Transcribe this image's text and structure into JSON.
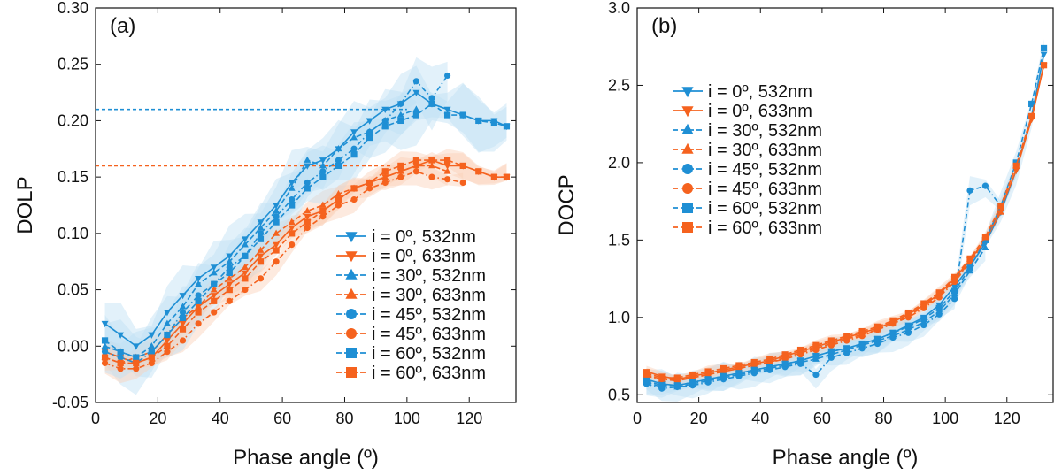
{
  "colors": {
    "blue": "#1f8fd4",
    "orange": "#f5621e",
    "band_blue": "#bfe0f3",
    "band_orange": "#fbd0b9"
  },
  "chart_data": [
    {
      "type": "line",
      "panel_label": "(a)",
      "xlabel": "Phase angle (º)",
      "ylabel": "DOLP",
      "xlim": [
        0,
        135
      ],
      "ylim": [
        -0.05,
        0.3
      ],
      "xticks": [
        "0",
        "20",
        "40",
        "60",
        "80",
        "100",
        "120"
      ],
      "xtick_values": [
        0,
        20,
        40,
        60,
        80,
        100,
        120
      ],
      "yticks": [
        "-0.05",
        "0.00",
        "0.05",
        "0.10",
        "0.15",
        "0.20",
        "0.25",
        "0.30"
      ],
      "ytick_values": [
        -0.05,
        0.0,
        0.05,
        0.1,
        0.15,
        0.2,
        0.25,
        0.3
      ],
      "reference_lines": [
        {
          "y": 0.21,
          "x_end": 100,
          "color": "blue"
        },
        {
          "y": 0.16,
          "x_end": 95,
          "color": "orange"
        }
      ],
      "legend_position": "bottom-right",
      "series": [
        {
          "name": "i =  0º, 532nm",
          "color": "blue",
          "marker": "triangle-down",
          "dash": "solid",
          "x": [
            3,
            8,
            13,
            18,
            23,
            28,
            33,
            38,
            43,
            48,
            53,
            58,
            63,
            68,
            73,
            78,
            83,
            88,
            93,
            98,
            103,
            108,
            113,
            118,
            123,
            128,
            132
          ],
          "y": [
            0.02,
            0.01,
            0.0,
            0.01,
            0.03,
            0.045,
            0.06,
            0.07,
            0.08,
            0.095,
            0.11,
            0.125,
            0.145,
            0.16,
            0.165,
            0.175,
            0.19,
            0.2,
            0.21,
            0.215,
            0.225,
            0.215,
            0.21,
            0.205,
            0.2,
            0.2,
            0.195
          ]
        },
        {
          "name": "i =  0º, 633nm",
          "color": "orange",
          "marker": "triangle-down",
          "dash": "solid",
          "x": [
            3,
            8,
            13,
            18,
            23,
            28,
            33,
            38,
            43,
            48,
            53,
            58,
            63,
            68,
            73,
            78,
            83,
            88,
            93,
            98,
            103,
            108,
            113,
            118,
            123,
            128,
            132
          ],
          "y": [
            -0.005,
            -0.01,
            -0.015,
            -0.01,
            0.005,
            0.02,
            0.035,
            0.045,
            0.055,
            0.065,
            0.08,
            0.09,
            0.105,
            0.115,
            0.12,
            0.13,
            0.14,
            0.145,
            0.15,
            0.155,
            0.16,
            0.165,
            0.16,
            0.16,
            0.155,
            0.15,
            0.15
          ]
        },
        {
          "name": "i = 30º, 532nm",
          "color": "blue",
          "marker": "triangle-up",
          "dash": "dash",
          "x": [
            3,
            8,
            13,
            18,
            23,
            28,
            33,
            38,
            43,
            48,
            53,
            58,
            63,
            68,
            73,
            78,
            83,
            88,
            93,
            98,
            103
          ],
          "y": [
            0.0,
            -0.005,
            -0.01,
            0.0,
            0.02,
            0.035,
            0.055,
            0.065,
            0.075,
            0.09,
            0.105,
            0.12,
            0.14,
            0.165,
            0.16,
            0.175,
            0.185,
            0.19,
            0.2,
            0.205,
            0.21
          ]
        },
        {
          "name": "i = 30º, 633nm",
          "color": "orange",
          "marker": "triangle-up",
          "dash": "dash",
          "x": [
            3,
            8,
            13,
            18,
            23,
            28,
            33,
            38,
            43,
            48,
            53,
            58,
            63,
            68,
            73,
            78,
            83,
            88,
            93,
            98,
            103,
            108,
            113
          ],
          "y": [
            -0.01,
            -0.015,
            -0.01,
            -0.005,
            0.01,
            0.025,
            0.035,
            0.05,
            0.06,
            0.07,
            0.085,
            0.1,
            0.11,
            0.12,
            0.125,
            0.135,
            0.14,
            0.145,
            0.15,
            0.155,
            0.16,
            0.16,
            0.155
          ]
        },
        {
          "name": "i = 45º, 532nm",
          "color": "blue",
          "marker": "circle",
          "dash": "dashdot",
          "x": [
            3,
            8,
            13,
            18,
            23,
            28,
            33,
            38,
            43,
            48,
            53,
            58,
            63,
            68,
            73,
            78,
            83,
            88,
            93,
            98,
            103,
            108,
            113
          ],
          "y": [
            -0.005,
            -0.01,
            -0.015,
            -0.005,
            0.01,
            0.03,
            0.045,
            0.055,
            0.07,
            0.08,
            0.1,
            0.115,
            0.13,
            0.145,
            0.155,
            0.165,
            0.175,
            0.19,
            0.2,
            0.215,
            0.235,
            0.22,
            0.24
          ]
        },
        {
          "name": "i = 45º, 633nm",
          "color": "orange",
          "marker": "circle",
          "dash": "dashdot",
          "x": [
            3,
            8,
            13,
            18,
            23,
            28,
            33,
            38,
            43,
            48,
            53,
            58,
            63,
            68,
            73,
            78,
            83,
            88,
            93,
            98,
            103,
            108,
            113,
            118
          ],
          "y": [
            -0.015,
            -0.02,
            -0.02,
            -0.015,
            -0.005,
            0.005,
            0.02,
            0.03,
            0.04,
            0.05,
            0.06,
            0.075,
            0.09,
            0.105,
            0.115,
            0.125,
            0.13,
            0.14,
            0.145,
            0.15,
            0.155,
            0.15,
            0.148,
            0.145
          ]
        },
        {
          "name": "i = 60º, 532nm",
          "color": "blue",
          "marker": "square",
          "dash": "dash",
          "x": [
            3,
            8,
            13,
            18,
            23,
            28,
            33,
            38,
            43,
            48,
            53,
            58,
            63,
            68,
            73,
            78,
            83,
            88,
            93,
            98,
            103,
            108,
            113,
            118,
            123,
            128,
            132
          ],
          "y": [
            0.005,
            -0.005,
            -0.01,
            -0.005,
            0.01,
            0.025,
            0.04,
            0.055,
            0.065,
            0.08,
            0.095,
            0.11,
            0.125,
            0.14,
            0.15,
            0.16,
            0.17,
            0.185,
            0.195,
            0.2,
            0.205,
            0.215,
            0.205,
            0.205,
            0.2,
            0.198,
            0.195
          ]
        },
        {
          "name": "i = 60º, 633nm",
          "color": "orange",
          "marker": "square",
          "dash": "dash",
          "x": [
            3,
            8,
            13,
            18,
            23,
            28,
            33,
            38,
            43,
            48,
            53,
            58,
            63,
            68,
            73,
            78,
            83,
            88,
            93,
            98,
            103,
            108,
            113,
            118,
            123,
            128,
            132
          ],
          "y": [
            -0.01,
            -0.015,
            -0.015,
            -0.01,
            0.0,
            0.015,
            0.03,
            0.04,
            0.05,
            0.06,
            0.075,
            0.085,
            0.1,
            0.11,
            0.12,
            0.13,
            0.14,
            0.145,
            0.155,
            0.16,
            0.165,
            0.165,
            0.165,
            0.16,
            0.155,
            0.15,
            0.15
          ]
        }
      ]
    },
    {
      "type": "line",
      "panel_label": "(b)",
      "xlabel": "Phase angle (º)",
      "ylabel": "DOCP",
      "xlim": [
        0,
        135
      ],
      "ylim": [
        0.45,
        3.0
      ],
      "xticks": [
        "0",
        "20",
        "40",
        "60",
        "80",
        "100",
        "120"
      ],
      "xtick_values": [
        0,
        20,
        40,
        60,
        80,
        100,
        120
      ],
      "yticks": [
        "0.5",
        "1.0",
        "1.5",
        "2.0",
        "2.5",
        "3.0"
      ],
      "ytick_values": [
        0.5,
        1.0,
        1.5,
        2.0,
        2.5,
        3.0
      ],
      "legend_position": "top-left",
      "series": [
        {
          "name": "i =  0º, 532nm",
          "color": "blue",
          "marker": "triangle-down",
          "dash": "solid",
          "x": [
            3,
            8,
            13,
            18,
            23,
            28,
            33,
            38,
            43,
            48,
            53,
            58,
            63,
            68,
            73,
            78,
            83,
            88,
            93,
            98,
            103,
            108,
            113,
            118,
            123,
            128,
            132
          ],
          "y": [
            0.6,
            0.57,
            0.56,
            0.58,
            0.6,
            0.62,
            0.64,
            0.66,
            0.68,
            0.7,
            0.72,
            0.75,
            0.78,
            0.8,
            0.83,
            0.86,
            0.9,
            0.95,
            1.0,
            1.08,
            1.2,
            1.33,
            1.48,
            1.68,
            1.95,
            2.3,
            2.7
          ]
        },
        {
          "name": "i =  0º, 633nm",
          "color": "orange",
          "marker": "triangle-down",
          "dash": "solid",
          "x": [
            3,
            8,
            13,
            18,
            23,
            28,
            33,
            38,
            43,
            48,
            53,
            58,
            63,
            68,
            73,
            78,
            83,
            88,
            93,
            98,
            103,
            108,
            113,
            118,
            123,
            128,
            132
          ],
          "y": [
            0.65,
            0.62,
            0.6,
            0.62,
            0.64,
            0.66,
            0.68,
            0.7,
            0.72,
            0.75,
            0.78,
            0.81,
            0.84,
            0.87,
            0.9,
            0.93,
            0.97,
            1.02,
            1.08,
            1.15,
            1.25,
            1.37,
            1.5,
            1.7,
            1.95,
            2.28,
            2.63
          ]
        },
        {
          "name": "i = 30º, 532nm",
          "color": "blue",
          "marker": "triangle-up",
          "dash": "dash",
          "x": [
            3,
            8,
            13,
            18,
            23,
            28,
            33,
            38,
            43,
            48,
            53,
            58,
            63,
            68,
            73,
            78,
            83,
            88,
            93,
            98,
            103,
            108,
            113
          ],
          "y": [
            0.58,
            0.55,
            0.55,
            0.57,
            0.59,
            0.61,
            0.63,
            0.65,
            0.67,
            0.69,
            0.71,
            0.73,
            0.76,
            0.79,
            0.82,
            0.85,
            0.88,
            0.92,
            0.97,
            1.04,
            1.15,
            1.3,
            1.45
          ]
        },
        {
          "name": "i = 30º, 633nm",
          "color": "orange",
          "marker": "triangle-up",
          "dash": "dash",
          "x": [
            3,
            8,
            13,
            18,
            23,
            28,
            33,
            38,
            43,
            48,
            53,
            58,
            63,
            68,
            73,
            78,
            83,
            88,
            93,
            98,
            103,
            108,
            113,
            118
          ],
          "y": [
            0.63,
            0.6,
            0.6,
            0.61,
            0.63,
            0.65,
            0.67,
            0.69,
            0.71,
            0.74,
            0.77,
            0.8,
            0.83,
            0.86,
            0.89,
            0.92,
            0.96,
            1.01,
            1.07,
            1.14,
            1.24,
            1.36,
            1.5,
            1.68
          ]
        },
        {
          "name": "i = 45º, 532nm",
          "color": "blue",
          "marker": "circle",
          "dash": "dashdot",
          "x": [
            3,
            8,
            13,
            18,
            23,
            28,
            33,
            38,
            43,
            48,
            53,
            58,
            63,
            68,
            73,
            78,
            83,
            88,
            93,
            98,
            103,
            108,
            113,
            118
          ],
          "y": [
            0.57,
            0.54,
            0.55,
            0.56,
            0.58,
            0.6,
            0.62,
            0.64,
            0.66,
            0.68,
            0.7,
            0.63,
            0.74,
            0.77,
            0.8,
            0.83,
            0.87,
            0.9,
            0.95,
            1.02,
            1.12,
            1.82,
            1.85,
            1.72
          ]
        },
        {
          "name": "i = 45º, 633nm",
          "color": "orange",
          "marker": "circle",
          "dash": "dashdot",
          "x": [
            3,
            8,
            13,
            18,
            23,
            28,
            33,
            38,
            43,
            48,
            53,
            58,
            63,
            68,
            73,
            78,
            83,
            88,
            93,
            98,
            103,
            108,
            113,
            118
          ],
          "y": [
            0.62,
            0.6,
            0.59,
            0.61,
            0.63,
            0.65,
            0.67,
            0.69,
            0.71,
            0.73,
            0.76,
            0.79,
            0.82,
            0.85,
            0.88,
            0.92,
            0.96,
            1.0,
            1.06,
            1.13,
            1.23,
            1.35,
            1.5,
            1.7
          ]
        },
        {
          "name": "i = 60º, 532nm",
          "color": "blue",
          "marker": "square",
          "dash": "dash",
          "x": [
            3,
            8,
            13,
            18,
            23,
            28,
            33,
            38,
            43,
            48,
            53,
            58,
            63,
            68,
            73,
            78,
            83,
            88,
            93,
            98,
            103,
            108,
            113,
            118,
            123,
            128,
            132
          ],
          "y": [
            0.59,
            0.56,
            0.56,
            0.58,
            0.6,
            0.62,
            0.64,
            0.66,
            0.68,
            0.7,
            0.72,
            0.75,
            0.78,
            0.8,
            0.83,
            0.86,
            0.9,
            0.94,
            0.99,
            1.06,
            1.17,
            1.32,
            1.5,
            1.72,
            2.0,
            2.38,
            2.74
          ]
        },
        {
          "name": "i = 60º, 633nm",
          "color": "orange",
          "marker": "square",
          "dash": "dash",
          "x": [
            3,
            8,
            13,
            18,
            23,
            28,
            33,
            38,
            43,
            48,
            53,
            58,
            63,
            68,
            73,
            78,
            83,
            88,
            93,
            98,
            103,
            108,
            113,
            118,
            123,
            128,
            132
          ],
          "y": [
            0.64,
            0.61,
            0.61,
            0.63,
            0.65,
            0.67,
            0.69,
            0.71,
            0.73,
            0.76,
            0.79,
            0.82,
            0.85,
            0.88,
            0.91,
            0.94,
            0.98,
            1.03,
            1.09,
            1.16,
            1.26,
            1.38,
            1.52,
            1.72,
            1.98,
            2.3,
            2.63
          ]
        }
      ]
    }
  ]
}
